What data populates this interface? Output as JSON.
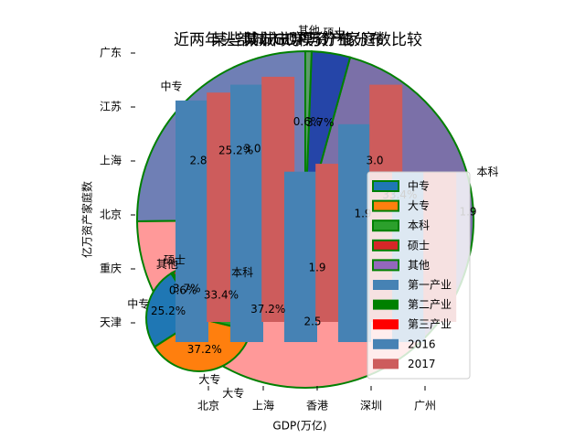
{
  "chart_data": [
    {
      "id": "bar",
      "type": "bar",
      "title": "近两年头部城市规模资产家庭数比较",
      "xlabel": "",
      "ylabel": "亿万资产家庭数",
      "categories": [
        "北京",
        "上海",
        "香港",
        "深圳",
        "广州"
      ],
      "series": [
        {
          "name": "2016",
          "color": "#4682B4",
          "values": [
            2.8,
            3.0,
            1.9,
            2.5,
            1.9
          ]
        },
        {
          "name": "2017",
          "color": "#CD5C5C",
          "values": [
            2.9,
            3.1,
            2.0,
            3.0,
            1.9
          ]
        }
      ],
      "ylim": [
        0,
        3.4
      ],
      "value_labels": [
        "2.8",
        "3.0",
        "1.9",
        "3.0",
        "1.9",
        "2.5",
        "1.9"
      ]
    },
    {
      "id": "hbar",
      "type": "bar",
      "orientation": "horizontal",
      "title": "某些城市GDP与产业分布",
      "xlabel": "GDP(万亿)",
      "categories": [
        "天津",
        "重庆",
        "北京",
        "上海",
        "江苏",
        "广东"
      ],
      "series": [
        {
          "name": "第一产业",
          "color": "#4682B4",
          "values": [
            0.1,
            0.1,
            0.1,
            0.1,
            0.1,
            0.1
          ]
        },
        {
          "name": "第二产业",
          "color": "#008000",
          "values": [
            0.1,
            0.1,
            0.1,
            0.1,
            0.1,
            0.1
          ]
        },
        {
          "name": "第三产业",
          "color": "#FF0000",
          "values": [
            0.1,
            0.1,
            0.1,
            0.1,
            0.1,
            0.1
          ]
        }
      ]
    },
    {
      "id": "pie-large",
      "type": "pie",
      "title": "某城市学历分布",
      "slices": [
        {
          "label": "中专",
          "value": 25.2,
          "color": "#6F7FB5"
        },
        {
          "label": "大专",
          "value": 37.2,
          "color": "#FF9999"
        },
        {
          "label": "本科",
          "value": 33.4,
          "color": "#7B70A8"
        },
        {
          "label": "硕士",
          "value": 3.7,
          "color": "#2545A8"
        },
        {
          "label": "其他",
          "value": 0.6,
          "color": "#5E9B6B"
        }
      ],
      "pct_labels": [
        "25.2%",
        "37.2%",
        "33.4%",
        "3.7%",
        "0.6%"
      ]
    },
    {
      "id": "pie-small",
      "type": "pie",
      "title": "某城市学历分布",
      "slices": [
        {
          "label": "中专",
          "value": 25.2,
          "color": "#1F77B4"
        },
        {
          "label": "大专",
          "value": 37.2,
          "color": "#FF7F0E"
        },
        {
          "label": "本科",
          "value": 33.4,
          "color": "#2CA02C"
        },
        {
          "label": "硕士",
          "value": 3.7,
          "color": "#D62728"
        },
        {
          "label": "其他",
          "value": 0.6,
          "color": "#9467BD"
        }
      ],
      "pct_labels": [
        "25.2%",
        "37.2%",
        "33.4%",
        "3.7%",
        "0.6%"
      ]
    }
  ],
  "legend": {
    "placement": "right",
    "entries": [
      {
        "label": "中专",
        "color": "#1F77B4",
        "kind": "patch-edge"
      },
      {
        "label": "大专",
        "color": "#FF7F0E",
        "kind": "patch-edge"
      },
      {
        "label": "本科",
        "color": "#2CA02C",
        "kind": "patch-edge"
      },
      {
        "label": "硕士",
        "color": "#D62728",
        "kind": "patch-edge"
      },
      {
        "label": "其他",
        "color": "#9467BD",
        "kind": "patch-edge"
      },
      {
        "label": "第一产业",
        "color": "#4682B4",
        "kind": "patch"
      },
      {
        "label": "第二产业",
        "color": "#008000",
        "kind": "patch"
      },
      {
        "label": "第三产业",
        "color": "#FF0000",
        "kind": "patch"
      },
      {
        "label": "2016",
        "color": "#4682B4",
        "kind": "patch"
      },
      {
        "label": "2017",
        "color": "#CD5C5C",
        "kind": "patch"
      }
    ]
  }
}
